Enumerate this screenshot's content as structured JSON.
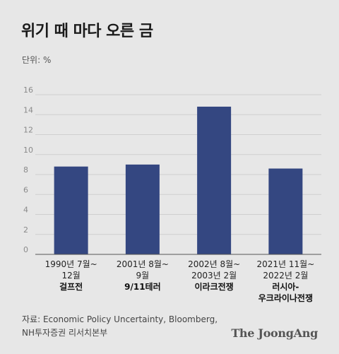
{
  "title": "위기 때 마다 오른 금",
  "unit_label": "단위: %",
  "source_lines": [
    "자료: Economic Policy Uncertainty, Bloomberg,",
    "NH투자증권 리서치본부"
  ],
  "brand": "The JoongAng",
  "colors": {
    "bar": "#344781",
    "grid": "#cfcfcf",
    "axis": "#555555",
    "background": "#e7e7e7"
  },
  "chart_data": {
    "type": "bar",
    "ylim": [
      0,
      16
    ],
    "yticks": [
      0,
      2,
      4,
      6,
      8,
      10,
      12,
      14,
      16
    ],
    "grid": true,
    "categories": [
      {
        "lines": [
          "1990년 7월~",
          "12월"
        ],
        "event": [
          "걸프전"
        ]
      },
      {
        "lines": [
          "2001년 8월~",
          "9월"
        ],
        "event": [
          "9/11테러"
        ]
      },
      {
        "lines": [
          "2002년 8월~",
          "2003년 2월"
        ],
        "event": [
          "이라크전쟁"
        ]
      },
      {
        "lines": [
          "2021년 11월~",
          "2022년 2월"
        ],
        "event": [
          "러시아-",
          "우크라이나전쟁"
        ]
      }
    ],
    "values": [
      8.8,
      9.0,
      14.8,
      8.6
    ]
  }
}
